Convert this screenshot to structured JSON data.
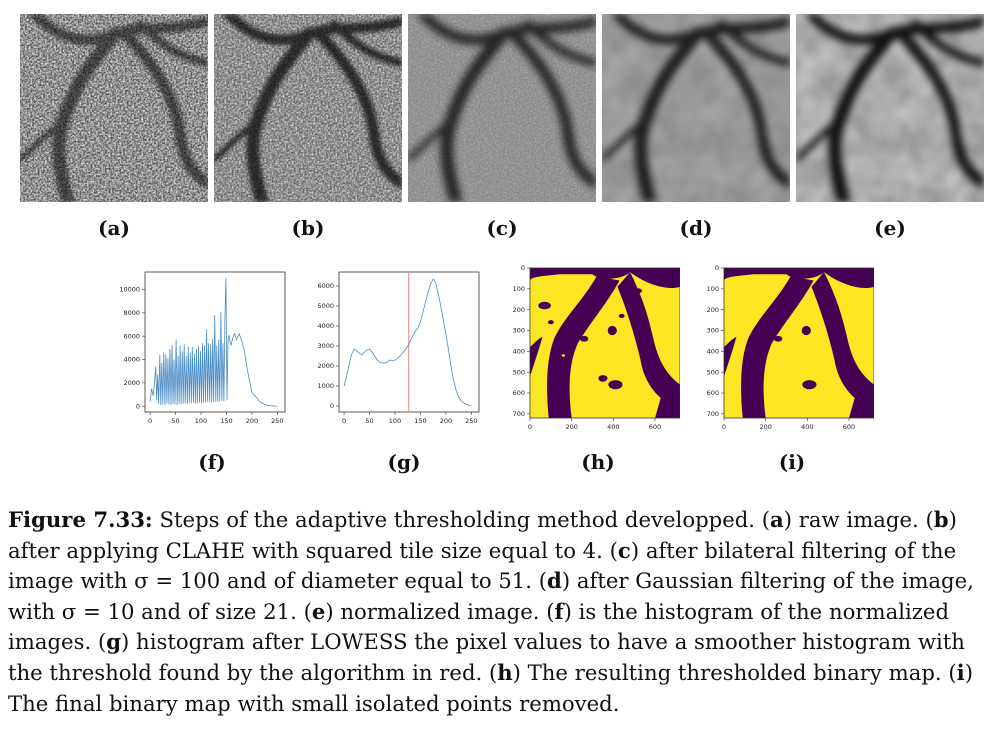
{
  "labels": {
    "a": "(a)",
    "b": "(b)",
    "c": "(c)",
    "d": "(d)",
    "e": "(e)",
    "f": "(f)",
    "g": "(g)",
    "h": "(h)",
    "i": "(i)"
  },
  "caption": {
    "lead": "Figure 7.33:",
    "s1": " Steps of the adaptive thresholding method developped. (",
    "k_a": "a",
    "s2": ") raw image. (",
    "k_b": "b",
    "s3": ") after applying CLAHE with squared tile size equal to 4. (",
    "k_c": "c",
    "s4": ") after bilateral filtering of the image with σ = 100 and of diameter equal to 51. (",
    "k_d": "d",
    "s5": ") after Gaussian filtering of the image, with σ = 10 and of size 21. (",
    "k_e": "e",
    "s6": ") normalized image. (",
    "k_f": "f",
    "s7": ") is the histogram of the normalized images. (",
    "k_g": "g",
    "s8": ") histogram after LOWESS the pixel values to have a smoother histogram with the threshold found by the algorithm in red. (",
    "k_h": "h",
    "s9": ") The resulting thresholded binary map. (",
    "k_i": "i",
    "s10": ") The final binary map with small isolated points removed."
  },
  "chart_data": [
    {
      "type": "line",
      "panel": "f",
      "xticks": [
        "0",
        "50",
        "100",
        "150",
        "200",
        "250"
      ],
      "yticks": [
        "0",
        "2000",
        "4000",
        "6000",
        "8000",
        "10000"
      ],
      "xlim": [
        -10,
        265
      ],
      "ylim": [
        -500,
        11500
      ],
      "color": "#4a8cc4",
      "series": [
        {
          "x": [
            0,
            3,
            6,
            9,
            11,
            13,
            15,
            17,
            19,
            21,
            23,
            25,
            27,
            29,
            31,
            33,
            35,
            37,
            39,
            41,
            43,
            45,
            47,
            49,
            51,
            53,
            55,
            57,
            59,
            61,
            63,
            65,
            67,
            69,
            71,
            73,
            75,
            77,
            79,
            81,
            83,
            85,
            87,
            89,
            91,
            93,
            95,
            97,
            99,
            101,
            103,
            105,
            107,
            109,
            111,
            113,
            115,
            117,
            119,
            121,
            123,
            125,
            127,
            129,
            131,
            133,
            135,
            137,
            139,
            141,
            143,
            145,
            147,
            149,
            151,
            153,
            155,
            157,
            159,
            162,
            166,
            170,
            175,
            180,
            185,
            190,
            195,
            200,
            205,
            210,
            215,
            220,
            225,
            230,
            235,
            240,
            245,
            250
          ],
          "y": [
            400,
            1500,
            900,
            2200,
            3400,
            500,
            2700,
            200,
            4400,
            100,
            3700,
            150,
            4600,
            100,
            4400,
            200,
            4100,
            150,
            4900,
            100,
            5200,
            200,
            4000,
            150,
            5700,
            100,
            4300,
            200,
            5200,
            150,
            4700,
            200,
            5300,
            250,
            4300,
            200,
            5100,
            300,
            4600,
            250,
            5100,
            300,
            4500,
            200,
            4900,
            250,
            5200,
            300,
            4700,
            250,
            5400,
            300,
            5200,
            350,
            6600,
            400,
            5400,
            350,
            5300,
            300,
            5800,
            350,
            7800,
            400,
            5200,
            350,
            5700,
            400,
            8100,
            450,
            5400,
            400,
            7400,
            11000,
            500,
            5600,
            6100,
            5500,
            5200,
            5800,
            6200,
            5700,
            6200,
            5600,
            4800,
            3400,
            2200,
            1200,
            900,
            700,
            400,
            250,
            150,
            80,
            40,
            20,
            10,
            5
          ]
        }
      ]
    },
    {
      "type": "line",
      "panel": "g",
      "xticks": [
        "0",
        "50",
        "100",
        "150",
        "200",
        "250"
      ],
      "yticks": [
        "0",
        "1000",
        "2000",
        "3000",
        "4000",
        "5000",
        "6000"
      ],
      "xlim": [
        -10,
        265
      ],
      "ylim": [
        -300,
        6700
      ],
      "color": "#4a8cc4",
      "threshold": 127,
      "threshold_color": "#f08080",
      "series": [
        {
          "x": [
            0,
            5,
            10,
            15,
            20,
            25,
            30,
            35,
            40,
            45,
            50,
            55,
            60,
            65,
            70,
            75,
            80,
            85,
            90,
            95,
            100,
            105,
            110,
            115,
            120,
            125,
            130,
            135,
            140,
            145,
            150,
            155,
            160,
            165,
            170,
            175,
            180,
            185,
            190,
            195,
            200,
            205,
            210,
            215,
            220,
            225,
            230,
            235,
            240,
            245,
            250
          ],
          "y": [
            1000,
            1500,
            2100,
            2600,
            2850,
            2750,
            2650,
            2550,
            2700,
            2800,
            2850,
            2700,
            2500,
            2300,
            2200,
            2150,
            2150,
            2200,
            2300,
            2250,
            2300,
            2400,
            2500,
            2650,
            2800,
            3000,
            3250,
            3500,
            3750,
            3900,
            4200,
            4700,
            5200,
            5700,
            6100,
            6350,
            6150,
            5600,
            5000,
            4300,
            3600,
            2800,
            2000,
            1300,
            800,
            450,
            250,
            150,
            80,
            40,
            20
          ]
        }
      ]
    },
    {
      "type": "heatmap",
      "panel": "h",
      "xticks": [
        "0",
        "200",
        "400",
        "600"
      ],
      "yticks": [
        "0",
        "100",
        "200",
        "300",
        "400",
        "500",
        "600",
        "700"
      ],
      "xlim": [
        0,
        720
      ],
      "ylim": [
        720,
        0
      ],
      "colors": {
        "low": "#440154",
        "high": "#fde725"
      }
    },
    {
      "type": "heatmap",
      "panel": "i",
      "xticks": [
        "0",
        "200",
        "400",
        "600"
      ],
      "yticks": [
        "0",
        "100",
        "200",
        "300",
        "400",
        "500",
        "600",
        "700"
      ],
      "xlim": [
        0,
        720
      ],
      "ylim": [
        720,
        0
      ],
      "colors": {
        "low": "#440154",
        "high": "#fde725"
      }
    }
  ]
}
